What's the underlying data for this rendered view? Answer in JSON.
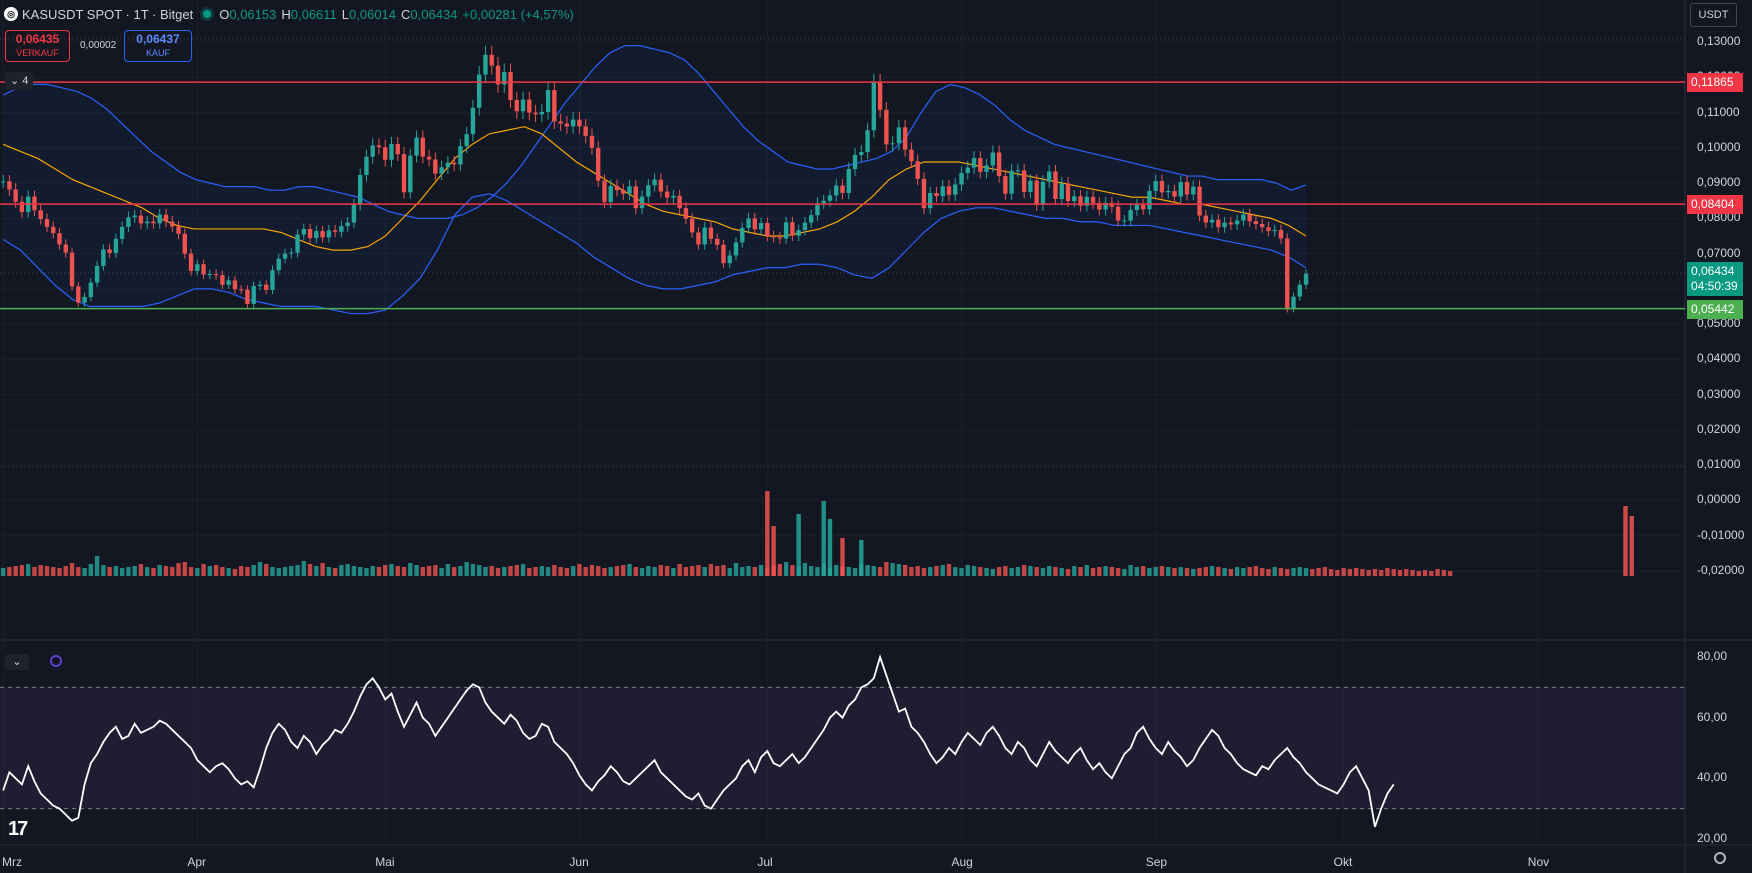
{
  "header": {
    "symbol": "KASUSDT SPOT · 1T · Bitget",
    "logo_icon": "exchange-logo-icon",
    "ohlc": [
      {
        "k": "O",
        "v": "0,06153"
      },
      {
        "k": "H",
        "v": "0,06611"
      },
      {
        "k": "L",
        "v": "0,06014"
      },
      {
        "k": "C",
        "v": "0,06434"
      },
      {
        "k": "",
        "v": "+0,00281 (+4,57%)"
      }
    ]
  },
  "trade": {
    "sell_price": "0,06435",
    "sell_label": "VERKAUF",
    "spread": "0,00002",
    "buy_price": "0,06437",
    "buy_label": "KAUF"
  },
  "indicator_toggle": "4",
  "currency": "USDT",
  "colors": {
    "up": "#26a69a",
    "down": "#ef5350",
    "bb": "#2962ff",
    "ma": "#f7a600",
    "resistance": "#f23645",
    "support": "#4caf50",
    "rsi": "#ffffff",
    "bg": "#131722"
  },
  "price_axis": {
    "labels": [
      "0,13000",
      "0,12000",
      "0,11000",
      "0,10000",
      "0,09000",
      "0,08000",
      "0,07000",
      "0,06000",
      "0,05000",
      "0,04000",
      "0,03000",
      "0,02000",
      "0,01000",
      "0,00000",
      "-0,01000",
      "-0,02000"
    ],
    "min": -0.022,
    "max": 0.134
  },
  "rsi_axis": {
    "labels": [
      "80,00",
      "60,00",
      "40,00",
      "20,00"
    ],
    "min": 18,
    "max": 83,
    "upper": 70,
    "lower": 30
  },
  "levels": [
    {
      "price": 0.11865,
      "label": "0,11865",
      "kind": "resistance"
    },
    {
      "price": 0.08404,
      "label": "0,08404",
      "kind": "resistance"
    },
    {
      "price": 0.05442,
      "label": "0,05442",
      "kind": "support"
    }
  ],
  "current": {
    "price": 0.06434,
    "label": "0,06434",
    "countdown": "04:50:39"
  },
  "time_axis": {
    "labels": [
      "Mrz",
      "Apr",
      "Mai",
      "Jun",
      "Jul",
      "Aug",
      "Sep",
      "Okt",
      "Nov"
    ],
    "month_start_index": [
      0,
      31,
      61,
      92,
      122,
      153,
      184,
      214,
      245
    ],
    "total_slots": 269
  },
  "chart_data": {
    "type": "candlestick",
    "closes": [
      0.0905,
      0.0882,
      0.0847,
      0.0818,
      0.0862,
      0.0823,
      0.0798,
      0.0776,
      0.0758,
      0.0726,
      0.0703,
      0.0607,
      0.0561,
      0.0577,
      0.0618,
      0.0665,
      0.0712,
      0.0702,
      0.0742,
      0.0776,
      0.0803,
      0.0808,
      0.0786,
      0.0791,
      0.0786,
      0.0811,
      0.0791,
      0.0777,
      0.0756,
      0.07,
      0.0651,
      0.067,
      0.0641,
      0.0642,
      0.0639,
      0.0612,
      0.0624,
      0.0599,
      0.0598,
      0.0557,
      0.0608,
      0.0612,
      0.0597,
      0.0653,
      0.0686,
      0.07,
      0.0703,
      0.0754,
      0.077,
      0.0744,
      0.0764,
      0.0746,
      0.0766,
      0.0762,
      0.0778,
      0.0788,
      0.0839,
      0.0923,
      0.0975,
      0.1007,
      0.1002,
      0.0966,
      0.1011,
      0.0982,
      0.0874,
      0.0978,
      0.1029,
      0.0975,
      0.0967,
      0.0927,
      0.0945,
      0.0958,
      0.0953,
      0.1005,
      0.1039,
      0.1114,
      0.1208,
      0.1264,
      0.1233,
      0.118,
      0.1215,
      0.1136,
      0.1104,
      0.1137,
      0.11,
      0.1095,
      0.1102,
      0.1164,
      0.1075,
      0.1069,
      0.1061,
      0.108,
      0.1061,
      0.1034,
      0.1,
      0.0907,
      0.0846,
      0.0892,
      0.088,
      0.087,
      0.0891,
      0.0829,
      0.0862,
      0.0894,
      0.091,
      0.0876,
      0.0859,
      0.0864,
      0.0829,
      0.0799,
      0.076,
      0.0726,
      0.0774,
      0.0742,
      0.0725,
      0.0673,
      0.0695,
      0.0732,
      0.0773,
      0.08,
      0.0769,
      0.0787,
      0.075,
      0.0746,
      0.0743,
      0.0789,
      0.0751,
      0.0767,
      0.0788,
      0.0809,
      0.0843,
      0.085,
      0.0865,
      0.0893,
      0.0872,
      0.094,
      0.098,
      0.0988,
      0.105,
      0.1186,
      0.1108,
      0.101,
      0.1013,
      0.1058,
      0.0995,
      0.0962,
      0.0912,
      0.0829,
      0.0872,
      0.0863,
      0.0891,
      0.0867,
      0.0896,
      0.0929,
      0.0944,
      0.0971,
      0.0932,
      0.095,
      0.0987,
      0.092,
      0.087,
      0.0935,
      0.0936,
      0.0875,
      0.0907,
      0.0838,
      0.0904,
      0.0933,
      0.0855,
      0.0899,
      0.0849,
      0.0863,
      0.0836,
      0.0861,
      0.0844,
      0.0825,
      0.0844,
      0.0833,
      0.0794,
      0.0794,
      0.0824,
      0.0838,
      0.0826,
      0.0878,
      0.0906,
      0.0874,
      0.0878,
      0.0862,
      0.0903,
      0.0868,
      0.089,
      0.0808,
      0.0788,
      0.0796,
      0.0775,
      0.0788,
      0.0783,
      0.0794,
      0.0811,
      0.0792,
      0.0784,
      0.0775,
      0.0764,
      0.0767,
      0.0743,
      0.0544,
      0.0578,
      0.0612,
      0.0643
    ],
    "bb_upper": {
      "from_index": 0,
      "values": [
        0.115,
        0.117,
        0.118,
        0.118,
        0.117,
        0.116,
        0.114,
        0.111,
        0.107,
        0.103,
        0.099,
        0.096,
        0.093,
        0.091,
        0.09,
        0.089,
        0.089,
        0.089,
        0.088,
        0.088,
        0.089,
        0.089,
        0.088,
        0.087,
        0.086,
        0.084,
        0.082,
        0.081,
        0.08,
        0.08,
        0.08,
        0.081,
        0.083,
        0.086,
        0.09,
        0.095,
        0.101,
        0.107,
        0.113,
        0.118,
        0.123,
        0.127,
        0.129,
        0.129,
        0.128,
        0.127,
        0.125,
        0.121,
        0.116,
        0.111,
        0.106,
        0.102,
        0.099,
        0.096,
        0.095,
        0.094,
        0.094,
        0.095,
        0.096,
        0.097,
        0.099,
        0.103,
        0.11,
        0.116,
        0.118,
        0.117,
        0.115,
        0.112,
        0.108,
        0.105,
        0.103,
        0.101,
        0.1,
        0.099,
        0.098,
        0.097,
        0.096,
        0.095,
        0.094,
        0.093,
        0.092,
        0.092,
        0.091,
        0.091,
        0.091,
        0.091,
        0.09,
        0.088,
        0.0895
      ]
    },
    "bb_lower": {
      "from_index": 0,
      "values": [
        0.074,
        0.071,
        0.066,
        0.061,
        0.057,
        0.055,
        0.055,
        0.055,
        0.055,
        0.056,
        0.058,
        0.06,
        0.06,
        0.059,
        0.057,
        0.056,
        0.055,
        0.055,
        0.055,
        0.054,
        0.053,
        0.053,
        0.054,
        0.058,
        0.063,
        0.071,
        0.081,
        0.086,
        0.087,
        0.085,
        0.082,
        0.079,
        0.076,
        0.073,
        0.069,
        0.066,
        0.063,
        0.061,
        0.06,
        0.06,
        0.061,
        0.062,
        0.064,
        0.065,
        0.066,
        0.066,
        0.067,
        0.067,
        0.066,
        0.064,
        0.063,
        0.066,
        0.071,
        0.076,
        0.08,
        0.082,
        0.083,
        0.083,
        0.082,
        0.081,
        0.08,
        0.08,
        0.079,
        0.079,
        0.078,
        0.078,
        0.078,
        0.077,
        0.076,
        0.075,
        0.074,
        0.073,
        0.072,
        0.071,
        0.069,
        0.066
      ]
    },
    "ma": {
      "from_index": 0,
      "values": [
        0.101,
        0.099,
        0.097,
        0.094,
        0.091,
        0.089,
        0.087,
        0.085,
        0.083,
        0.08,
        0.078,
        0.077,
        0.077,
        0.077,
        0.077,
        0.077,
        0.076,
        0.074,
        0.072,
        0.071,
        0.071,
        0.072,
        0.075,
        0.08,
        0.085,
        0.091,
        0.097,
        0.101,
        0.104,
        0.105,
        0.106,
        0.104,
        0.1,
        0.096,
        0.093,
        0.09,
        0.087,
        0.084,
        0.082,
        0.081,
        0.08,
        0.079,
        0.077,
        0.076,
        0.075,
        0.075,
        0.076,
        0.077,
        0.079,
        0.082,
        0.086,
        0.091,
        0.094,
        0.096,
        0.096,
        0.096,
        0.095,
        0.094,
        0.093,
        0.092,
        0.091,
        0.09,
        0.089,
        0.088,
        0.087,
        0.086,
        0.086,
        0.085,
        0.084,
        0.084,
        0.083,
        0.082,
        0.081,
        0.08,
        0.078,
        0.075
      ]
    },
    "volume_bars": [
      8,
      9,
      10,
      11,
      12,
      9,
      11,
      10,
      9,
      8,
      10,
      13,
      9,
      8,
      12,
      20,
      11,
      9,
      10,
      8,
      9,
      10,
      12,
      9,
      8,
      11,
      10,
      9,
      13,
      14,
      9,
      8,
      12,
      10,
      11,
      9,
      8,
      7,
      10,
      9,
      11,
      14,
      12,
      9,
      8,
      9,
      10,
      11,
      15,
      12,
      10,
      13,
      9,
      8,
      11,
      12,
      10,
      9,
      8,
      10,
      9,
      11,
      12,
      10,
      9,
      13,
      11,
      9,
      10,
      11,
      8,
      12,
      9,
      10,
      14,
      12,
      11,
      9,
      10,
      8,
      9,
      10,
      11,
      12,
      8,
      9,
      10,
      9,
      11,
      9,
      8,
      10,
      12,
      9,
      11,
      10,
      8,
      9,
      10,
      11,
      12,
      9,
      8,
      10,
      9,
      11,
      10,
      8,
      12,
      9,
      10,
      11,
      9,
      12,
      10,
      11,
      8,
      13,
      9,
      10,
      9,
      11,
      8,
      10,
      12,
      14,
      11,
      9,
      13,
      10,
      9,
      12,
      8,
      11,
      10,
      9,
      8,
      12,
      11,
      10,
      9,
      14,
      13,
      12,
      11,
      9,
      10,
      8,
      9,
      10,
      11,
      12,
      9,
      8,
      11,
      10,
      9,
      8,
      7,
      9,
      10,
      8,
      9,
      11,
      10,
      9,
      8,
      10,
      9,
      8,
      7,
      10,
      9,
      11,
      8,
      9,
      10,
      9,
      8,
      7,
      11,
      9,
      10,
      8,
      9,
      10,
      9,
      8,
      9,
      8,
      7,
      8,
      9,
      10,
      9,
      8,
      7,
      9,
      8,
      9,
      10,
      8,
      7,
      9,
      8,
      7,
      8,
      9,
      8,
      7,
      8,
      9,
      7,
      6,
      8,
      7,
      8,
      7,
      6,
      7,
      6,
      8,
      7,
      6,
      7,
      6,
      5,
      6,
      5,
      7,
      6,
      5
    ],
    "volume_spikes": [
      {
        "i": 122,
        "h": 85
      },
      {
        "i": 123,
        "h": 50
      },
      {
        "i": 127,
        "h": 62
      },
      {
        "i": 131,
        "h": 75
      },
      {
        "i": 132,
        "h": 57
      },
      {
        "i": 134,
        "h": 38
      },
      {
        "i": 137,
        "h": 36
      },
      {
        "i": 259,
        "h": 70
      },
      {
        "i": 260,
        "h": 60
      }
    ],
    "rsi": [
      36,
      42,
      40,
      38,
      44,
      39,
      35,
      33,
      31,
      30,
      28,
      26,
      27,
      38,
      45,
      48,
      52,
      55,
      57,
      53,
      54,
      58,
      55,
      56,
      57,
      59,
      58,
      56,
      54,
      52,
      50,
      46,
      44,
      42,
      44,
      45,
      43,
      40,
      38,
      39,
      37,
      43,
      50,
      55,
      58,
      56,
      52,
      50,
      54,
      52,
      48,
      51,
      53,
      56,
      55,
      58,
      62,
      67,
      71,
      73,
      70,
      66,
      68,
      62,
      57,
      61,
      65,
      60,
      58,
      54,
      57,
      60,
      63,
      66,
      69,
      71,
      70,
      65,
      62,
      60,
      58,
      61,
      59,
      55,
      53,
      54,
      58,
      57,
      52,
      50,
      48,
      45,
      41,
      38,
      36,
      39,
      41,
      44,
      42,
      39,
      38,
      40,
      42,
      44,
      46,
      42,
      40,
      38,
      36,
      34,
      33,
      35,
      31,
      30,
      33,
      36,
      38,
      40,
      44,
      46,
      42,
      47,
      49,
      45,
      44,
      46,
      48,
      45,
      47,
      50,
      53,
      56,
      60,
      62,
      60,
      64,
      66,
      70,
      71,
      73,
      80,
      74,
      68,
      62,
      63,
      57,
      55,
      52,
      48,
      45,
      47,
      50,
      48,
      52,
      55,
      53,
      51,
      55,
      57,
      54,
      50,
      48,
      52,
      50,
      46,
      44,
      48,
      52,
      49,
      47,
      45,
      48,
      50,
      46,
      43,
      45,
      42,
      40,
      44,
      48,
      50,
      55,
      57,
      53,
      50,
      48,
      52,
      49,
      47,
      44,
      46,
      50,
      53,
      56,
      54,
      50,
      48,
      45,
      43,
      42,
      41,
      44,
      43,
      46,
      48,
      50,
      47,
      45,
      42,
      40,
      38,
      37,
      36,
      35,
      38,
      42,
      44,
      40,
      36,
      24,
      30,
      35,
      38
    ]
  }
}
